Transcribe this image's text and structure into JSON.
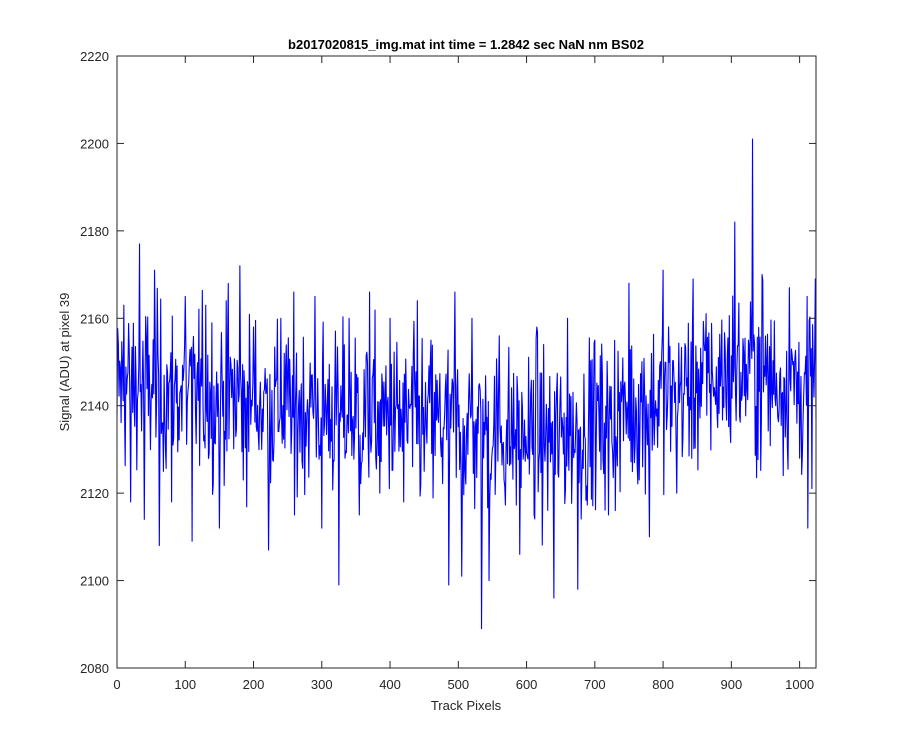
{
  "chart_data": {
    "type": "line",
    "title": "b2017020815_img.mat int time = 1.2842 sec  NaN nm BS02",
    "xlabel": "Track Pixels",
    "ylabel": "Signal (ADU) at pixel 39",
    "xlim": [
      0,
      1024
    ],
    "ylim": [
      2080,
      2220
    ],
    "xticks": [
      "0",
      "100",
      "200",
      "300",
      "400",
      "500",
      "600",
      "700",
      "800",
      "900",
      "1000"
    ],
    "xtick_values": [
      0,
      100,
      200,
      300,
      400,
      500,
      600,
      700,
      800,
      900,
      1000
    ],
    "yticks": [
      "2080",
      "2100",
      "2120",
      "2140",
      "2160",
      "2180",
      "2200",
      "2220"
    ],
    "ytick_values": [
      2080,
      2100,
      2120,
      2140,
      2160,
      2180,
      2200,
      2220
    ],
    "grid": false,
    "legend": "none",
    "series": [
      {
        "color": "#0000ff",
        "x": [
          0,
          10,
          20,
          33,
          40,
          55,
          62,
          80,
          100,
          110,
          130,
          150,
          160,
          180,
          185,
          200,
          222,
          240,
          260,
          290,
          300,
          325,
          340,
          355,
          370,
          385,
          400,
          420,
          440,
          450,
          460,
          486,
          495,
          505,
          520,
          534,
          545,
          560,
          590,
          615,
          640,
          660,
          675,
          700,
          720,
          750,
          780,
          800,
          820,
          850,
          880,
          905,
          925,
          931,
          945,
          965,
          985,
          1000,
          1012,
          1023
        ],
        "y": [
          2138,
          2163,
          2118,
          2177,
          2114,
          2171,
          2108,
          2118,
          2165,
          2109,
          2163,
          2112,
          2164,
          2172,
          2123,
          2158,
          2107,
          2160,
          2115,
          2165,
          2112,
          2099,
          2160,
          2115,
          2166,
          2120,
          2160,
          2118,
          2164,
          2125,
          2155,
          2099,
          2166,
          2101,
          2160,
          2089,
          2100,
          2156,
          2106,
          2158,
          2096,
          2160,
          2098,
          2155,
          2115,
          2168,
          2110,
          2171,
          2120,
          2150,
          2135,
          2182,
          2155,
          2201,
          2170,
          2140,
          2167,
          2128,
          2112,
          2169
        ]
      }
    ]
  }
}
